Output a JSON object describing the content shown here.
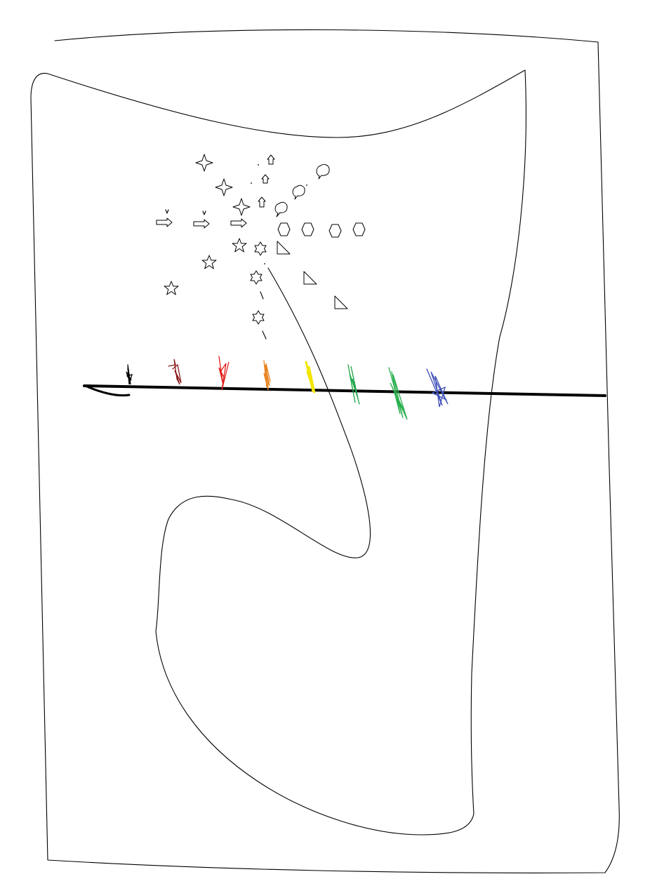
{
  "drawing": {
    "stroke_color": "#000000",
    "background_color": "#ffffff",
    "markers": [
      {
        "name": "black",
        "color": "#000000"
      },
      {
        "name": "dark-red",
        "color": "#8b1a1a"
      },
      {
        "name": "red",
        "color": "#e0201c"
      },
      {
        "name": "orange",
        "color": "#e8821e"
      },
      {
        "name": "yellow",
        "color": "#f2e600"
      },
      {
        "name": "green",
        "color": "#1fa64a"
      },
      {
        "name": "green-2",
        "color": "#2bb04f"
      },
      {
        "name": "blue",
        "color": "#3e4fb8"
      }
    ],
    "icons": {
      "four_point_star": "four-point-star-icon",
      "five_point_star": "five-point-star-icon",
      "six_point_star": "six-point-star-icon",
      "arrow_right": "arrow-right-icon",
      "arrow_up": "arrow-up-icon",
      "hexagon": "hexagon-icon",
      "right_triangle": "right-triangle-icon",
      "thought_bubble": "thought-bubble-icon"
    }
  }
}
